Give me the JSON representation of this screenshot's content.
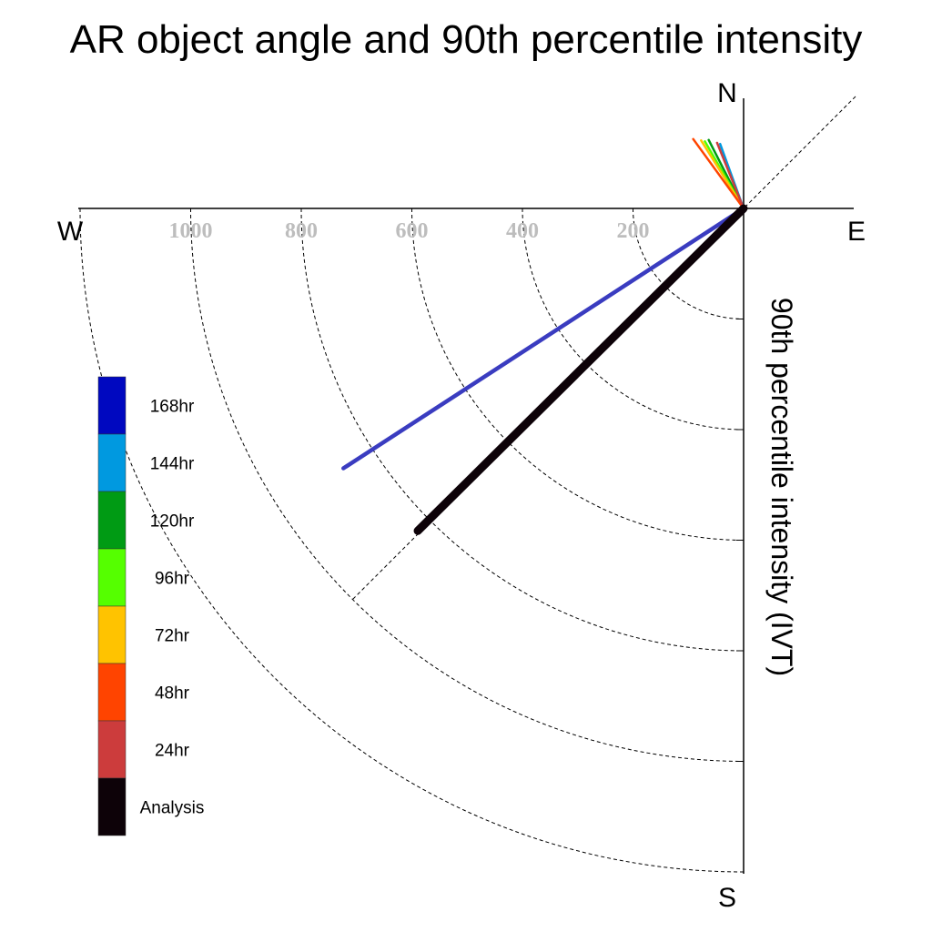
{
  "chart_data": {
    "type": "polar-vector",
    "title": "AR object angle and 90th percentile intensity",
    "axis_label": "90th percentile intensity (IVT)",
    "compass": {
      "north": "N",
      "south": "S",
      "east": "E",
      "west": "W"
    },
    "radial_ticks": [
      200,
      400,
      600,
      800,
      1000
    ],
    "radial_tick_labels": [
      "200",
      "400",
      "600",
      "800",
      "1000"
    ],
    "r_max": 1200,
    "grid": "dashed quarter-circle rings in SW quadrant, NE-SW dashed diagonal",
    "legend": [
      {
        "label": "168hr",
        "color": "#0008c0"
      },
      {
        "label": "144hr",
        "color": "#0099e0"
      },
      {
        "label": "120hr",
        "color": "#009b14"
      },
      {
        "label": "96hr",
        "color": "#55ff00"
      },
      {
        "label": "72hr",
        "color": "#ffc300"
      },
      {
        "label": "48hr",
        "color": "#ff4400"
      },
      {
        "label": "24hr",
        "color": "#cc3c3c"
      },
      {
        "label": "Analysis",
        "color": "#0d0208"
      }
    ],
    "vectors": [
      {
        "series": "Analysis",
        "angle_deg": 225.3,
        "intensity": 829,
        "color": "#0d0208"
      },
      {
        "series": "168hr",
        "angle_deg": 237.0,
        "intensity": 863,
        "color": "#3a3cc0"
      },
      {
        "series": "144hr",
        "angle_deg": 340.0,
        "intensity": 124,
        "color": "#0099e0"
      },
      {
        "series": "120hr",
        "angle_deg": 333.0,
        "intensity": 139,
        "color": "#009b14"
      },
      {
        "series": "96hr",
        "angle_deg": 330.0,
        "intensity": 140,
        "color": "#55ff00"
      },
      {
        "series": "72hr",
        "angle_deg": 328.0,
        "intensity": 145,
        "color": "#ffc300"
      },
      {
        "series": "48hr",
        "angle_deg": 324.0,
        "intensity": 155,
        "color": "#ff4400"
      },
      {
        "series": "24hr",
        "angle_deg": 338.0,
        "intensity": 128,
        "color": "#cc3c3c"
      }
    ]
  }
}
